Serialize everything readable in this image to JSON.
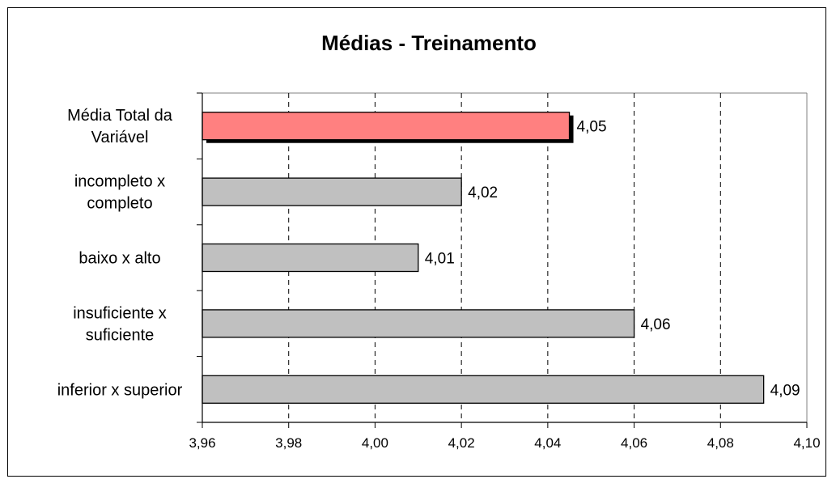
{
  "chart_data": {
    "type": "bar",
    "orientation": "horizontal",
    "title": "Médias - Treinamento",
    "xlabel": "",
    "ylabel": "",
    "categories": [
      [
        "Média Total da",
        "Variável"
      ],
      [
        "incompleto x",
        "completo"
      ],
      [
        "baixo x alto"
      ],
      [
        "insuficiente x",
        "suficiente"
      ],
      [
        "inferior x superior"
      ]
    ],
    "values": [
      4.045,
      4.02,
      4.01,
      4.06,
      4.09
    ],
    "data_labels": [
      "4,05",
      "4,02",
      "4,01",
      "4,06",
      "4,09"
    ],
    "highlight_index": 0,
    "xlim": [
      3.96,
      4.1
    ],
    "x_ticks": [
      3.96,
      3.98,
      4.0,
      4.02,
      4.04,
      4.06,
      4.08,
      4.1
    ],
    "x_tick_labels": [
      "3,96",
      "3,98",
      "4,00",
      "4,02",
      "4,04",
      "4,06",
      "4,08",
      "4,10"
    ],
    "grid": "vertical-dashed",
    "legend": "none",
    "colors": {
      "bar": "#c0c0c0",
      "highlight": "#ff8080",
      "shadow": "#000000",
      "stroke": "#000000",
      "grid": "#000000",
      "background": "#ffffff"
    }
  }
}
